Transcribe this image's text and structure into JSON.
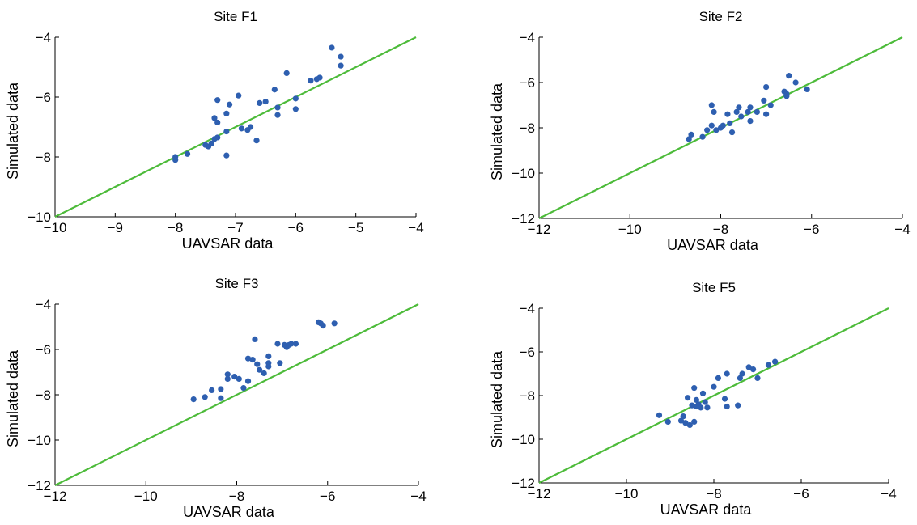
{
  "figure": {
    "colors": {
      "points": "#2e5fb0",
      "identity_line": "#4dbb3a",
      "axes": "#000000"
    }
  },
  "chart_data": [
    {
      "type": "scatter",
      "title": "Site F1",
      "xlabel": "UAVSAR data",
      "ylabel": "Simulated data",
      "xlim": [
        -10,
        -4
      ],
      "ylim": [
        -10,
        -4
      ],
      "xticks": [
        -10,
        -9,
        -8,
        -7,
        -6,
        -5,
        -4
      ],
      "yticks": [
        -10,
        -8,
        -6,
        -4
      ],
      "grid": false,
      "reference_line": {
        "type": "identity",
        "from": [
          -10,
          -10
        ],
        "to": [
          -4,
          -4
        ]
      },
      "series": [
        {
          "x": [
            -8.0,
            -8.0,
            -7.8,
            -7.5,
            -7.45,
            -7.4,
            -7.35,
            -7.35,
            -7.3,
            -7.3,
            -7.3,
            -7.15,
            -7.15,
            -7.15,
            -7.1,
            -6.95,
            -6.9,
            -6.8,
            -6.75,
            -6.65,
            -6.6,
            -6.5,
            -6.35,
            -6.3,
            -6.3,
            -6.15,
            -6.0,
            -6.0,
            -5.75,
            -5.65,
            -5.6,
            -5.4,
            -5.25,
            -5.25
          ],
          "y": [
            -8.1,
            -8.0,
            -7.9,
            -7.6,
            -7.65,
            -7.55,
            -7.4,
            -6.7,
            -6.85,
            -6.1,
            -7.35,
            -7.15,
            -6.55,
            -7.95,
            -6.25,
            -5.95,
            -7.05,
            -7.1,
            -7.0,
            -7.45,
            -6.2,
            -6.15,
            -5.75,
            -6.35,
            -6.6,
            -5.2,
            -6.05,
            -6.4,
            -5.45,
            -5.4,
            -5.35,
            -4.35,
            -4.95,
            -4.65
          ]
        }
      ]
    },
    {
      "type": "scatter",
      "title": "Site F2",
      "xlabel": "UAVSAR data",
      "ylabel": "Simulated data",
      "xlim": [
        -12,
        -4
      ],
      "ylim": [
        -12,
        -4
      ],
      "xticks": [
        -12,
        -10,
        -8,
        -6,
        -4
      ],
      "yticks": [
        -12,
        -10,
        -8,
        -6,
        -4
      ],
      "grid": false,
      "reference_line": {
        "type": "identity",
        "from": [
          -12,
          -12
        ],
        "to": [
          -4,
          -4
        ]
      },
      "series": [
        {
          "x": [
            -8.7,
            -8.65,
            -8.4,
            -8.3,
            -8.2,
            -8.2,
            -8.15,
            -8.1,
            -8.0,
            -7.95,
            -7.85,
            -7.8,
            -7.75,
            -7.65,
            -7.6,
            -7.55,
            -7.4,
            -7.35,
            -7.35,
            -7.2,
            -7.05,
            -7.0,
            -7.0,
            -6.9,
            -6.6,
            -6.55,
            -6.55,
            -6.5,
            -6.35,
            -6.1
          ],
          "y": [
            -8.5,
            -8.3,
            -8.4,
            -8.1,
            -7.9,
            -7.0,
            -7.3,
            -8.1,
            -8.0,
            -7.9,
            -7.4,
            -7.8,
            -8.2,
            -7.3,
            -7.1,
            -7.5,
            -7.3,
            -7.1,
            -7.7,
            -7.3,
            -6.8,
            -6.2,
            -7.4,
            -7.0,
            -6.4,
            -6.5,
            -6.6,
            -5.7,
            -6.0,
            -6.3
          ]
        }
      ]
    },
    {
      "type": "scatter",
      "title": "Site F3",
      "xlabel": "UAVSAR data",
      "ylabel": "Simulated data",
      "xlim": [
        -12,
        -4
      ],
      "ylim": [
        -12,
        -4
      ],
      "xticks": [
        -12,
        -10,
        -8,
        -6,
        -4
      ],
      "yticks": [
        -12,
        -10,
        -8,
        -6,
        -4
      ],
      "grid": false,
      "reference_line": {
        "type": "identity",
        "from": [
          -12,
          -12
        ],
        "to": [
          -4,
          -4
        ]
      },
      "series": [
        {
          "x": [
            -8.95,
            -8.7,
            -8.55,
            -8.35,
            -8.35,
            -8.2,
            -8.2,
            -8.05,
            -7.95,
            -7.85,
            -7.75,
            -7.75,
            -7.65,
            -7.6,
            -7.55,
            -7.5,
            -7.4,
            -7.3,
            -7.3,
            -7.3,
            -7.1,
            -7.05,
            -6.95,
            -6.9,
            -6.85,
            -6.8,
            -6.7,
            -6.2,
            -6.15,
            -6.1,
            -5.85
          ],
          "y": [
            -8.2,
            -8.1,
            -7.8,
            -7.75,
            -8.15,
            -7.3,
            -7.1,
            -7.2,
            -7.3,
            -7.7,
            -6.4,
            -7.4,
            -6.45,
            -5.55,
            -6.65,
            -6.9,
            -7.05,
            -6.75,
            -6.3,
            -6.6,
            -5.75,
            -6.6,
            -5.8,
            -5.9,
            -5.8,
            -5.75,
            -5.75,
            -4.8,
            -4.85,
            -4.95,
            -4.85
          ]
        }
      ]
    },
    {
      "type": "scatter",
      "title": "Site F5",
      "xlabel": "UAVSAR data",
      "ylabel": "Simulated data",
      "xlim": [
        -12,
        -4
      ],
      "ylim": [
        -12,
        -4
      ],
      "xticks": [
        -12,
        -10,
        -8,
        -6,
        -4
      ],
      "yticks": [
        -12,
        -10,
        -8,
        -6,
        -4
      ],
      "grid": false,
      "reference_line": {
        "type": "identity",
        "from": [
          -12,
          -12
        ],
        "to": [
          -4,
          -4
        ]
      },
      "series": [
        {
          "x": [
            -9.25,
            -9.05,
            -8.75,
            -8.7,
            -8.65,
            -8.6,
            -8.55,
            -8.5,
            -8.45,
            -8.45,
            -8.4,
            -8.4,
            -8.35,
            -8.3,
            -8.25,
            -8.2,
            -8.15,
            -8.0,
            -7.9,
            -7.75,
            -7.7,
            -7.7,
            -7.45,
            -7.4,
            -7.35,
            -7.2,
            -7.1,
            -7.0,
            -6.75,
            -6.6
          ],
          "y": [
            -8.9,
            -9.2,
            -9.15,
            -8.95,
            -9.25,
            -8.1,
            -9.35,
            -8.45,
            -7.65,
            -9.2,
            -8.2,
            -8.5,
            -8.4,
            -8.55,
            -7.9,
            -8.3,
            -8.55,
            -7.6,
            -7.2,
            -8.15,
            -8.5,
            -7.0,
            -8.45,
            -7.2,
            -7.0,
            -6.7,
            -6.8,
            -7.2,
            -6.6,
            -6.45
          ]
        }
      ]
    }
  ]
}
